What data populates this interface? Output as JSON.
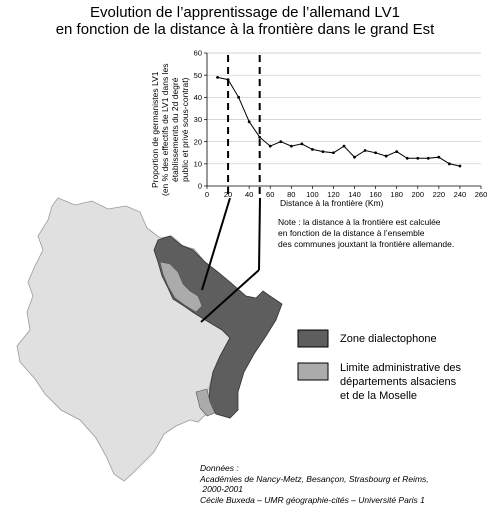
{
  "title": {
    "line1": "Evolution de l’apprentissage de l’allemand LV1",
    "line2": "en fonction de la distance à la frontière dans le grand Est"
  },
  "chart_data": {
    "type": "line",
    "ylabel_lines": [
      "Proportion  de germanistes LV1",
      "(en % des effectifs de LV1 dans les",
      "établissements du 2d degré",
      "public et privé sous-contrat)"
    ],
    "xlabel": "Distance à la frontière (Km)",
    "xlim": [
      0,
      260
    ],
    "ylim": [
      0,
      60
    ],
    "xticks": [
      0,
      20,
      40,
      60,
      80,
      100,
      120,
      140,
      160,
      180,
      200,
      220,
      240,
      260
    ],
    "yticks": [
      0,
      10,
      20,
      30,
      40,
      50,
      60
    ],
    "x": [
      10,
      20,
      30,
      40,
      50,
      60,
      70,
      80,
      90,
      100,
      110,
      120,
      130,
      140,
      150,
      160,
      170,
      180,
      190,
      200,
      210,
      220,
      230,
      240
    ],
    "y": [
      49,
      48,
      40,
      29,
      22,
      18,
      20,
      18,
      19,
      16.5,
      15.5,
      15,
      18,
      13,
      16,
      15,
      13.5,
      15.5,
      12.5,
      12.5,
      12.5,
      13,
      10,
      9
    ],
    "reference_lines_x": [
      20,
      50
    ]
  },
  "note": {
    "lines": [
      "Note : la distance à la frontière est calculée",
      "en fonction de la distance à l’ensemble",
      "des communes jouxtant la frontière allemande."
    ]
  },
  "legend": {
    "items": [
      {
        "label_lines": [
          "Zone dialectophone"
        ],
        "color": "#5e5e5e"
      },
      {
        "label_lines": [
          "Limite administrative des",
          "départements alsaciens",
          "et de la Moselle"
        ],
        "color": "#ababab"
      }
    ]
  },
  "map": {
    "region_color": "#e0e0e0",
    "dialect_color": "#5e5e5e",
    "admin_color": "#ababab"
  },
  "source": {
    "lines": [
      "Données :",
      "Académies de Nancy-Metz, Besançon, Strasbourg et Reims,",
      " 2000-2001",
      "Cécile Buxeda – UMR géographie-cités – Université Paris 1"
    ]
  }
}
